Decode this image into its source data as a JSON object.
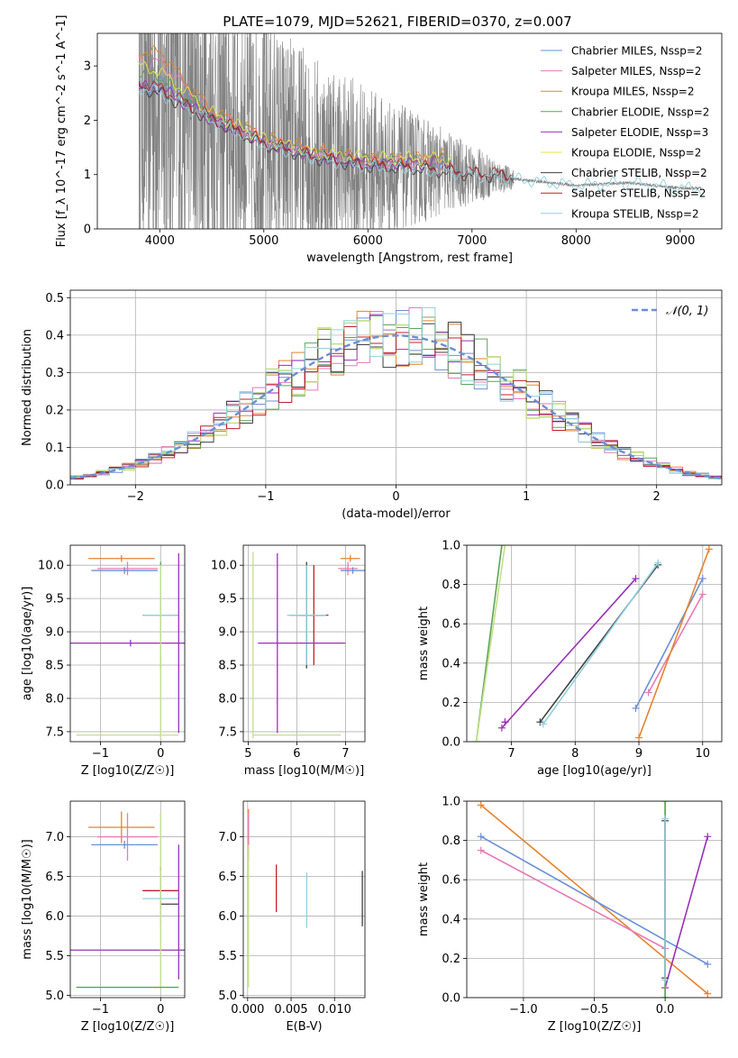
{
  "figure": {
    "title": "PLATE=1079, MJD=52621, FIBERID=0370, z=0.007"
  },
  "chart_data": [
    {
      "id": "spectrum",
      "type": "line",
      "title": "PLATE=1079, MJD=52621, FIBERID=0370, z=0.007",
      "xlabel": "wavelength [Angstrom, rest frame]",
      "ylabel": "Flux [f_λ 10^-17 erg cm^-2 s^-1 A^-1]",
      "xlim": [
        3400,
        9400
      ],
      "ylim": [
        0,
        3.6
      ],
      "xticks": [
        4000,
        5000,
        6000,
        7000,
        8000,
        9000
      ],
      "yticks": [
        0,
        1,
        2,
        3
      ],
      "grid": false,
      "legend_position": "top-right",
      "observed_color": "#808080",
      "observed_data_range": [
        3800,
        9200
      ],
      "series": [
        {
          "name": "Chabrier MILES, N_SSP=2",
          "color": "#6a8fd6",
          "x": [
            3800,
            3900,
            4000,
            4200,
            4500,
            5000,
            5500,
            6000,
            6500,
            6750
          ],
          "y": [
            2.7,
            2.6,
            2.7,
            2.5,
            2.05,
            1.6,
            1.35,
            1.2,
            1.2,
            1.25
          ]
        },
        {
          "name": "Salpeter MILES, N_SSP=2",
          "color": "#e87ab5",
          "x": [
            3800,
            3900,
            4000,
            4200,
            4500,
            5000,
            5500,
            6000,
            6500,
            6750
          ],
          "y": [
            3.2,
            3.0,
            3.1,
            2.7,
            2.15,
            1.65,
            1.4,
            1.25,
            1.25,
            1.3
          ]
        },
        {
          "name": "Kroupa MILES, N_SSP=2",
          "color": "#e5832e",
          "x": [
            3800,
            3900,
            4000,
            4200,
            4500,
            5000,
            5500,
            6000,
            6500,
            6750
          ],
          "y": [
            3.3,
            3.2,
            3.3,
            2.8,
            2.2,
            1.7,
            1.45,
            1.3,
            1.3,
            1.35
          ]
        },
        {
          "name": "Chabrier ELODIE, N_SSP=2",
          "color": "#5ba35b",
          "x": [
            3800,
            4000,
            4500,
            5000,
            5500,
            6000,
            6500,
            6800
          ],
          "y": [
            2.9,
            2.8,
            2.1,
            1.65,
            1.4,
            1.25,
            1.25,
            1.3
          ]
        },
        {
          "name": "Salpeter ELODIE, N_SSP=3",
          "color": "#9b30b8",
          "x": [
            3800,
            4000,
            4500,
            5000,
            5500,
            6000,
            6500,
            6800
          ],
          "y": [
            2.6,
            2.6,
            2.0,
            1.6,
            1.35,
            1.2,
            1.2,
            1.25
          ]
        },
        {
          "name": "Kroupa ELODIE, N_SSP=2",
          "color": "#e3e83a",
          "x": [
            3800,
            4000,
            4500,
            5000,
            5500,
            6000,
            6500,
            6800
          ],
          "y": [
            3.0,
            2.9,
            2.15,
            1.65,
            1.4,
            1.3,
            1.3,
            1.3
          ]
        },
        {
          "name": "Chabrier STELIB, N_SSP=2",
          "color": "#404040",
          "x": [
            3800,
            4000,
            4500,
            5000,
            5500,
            6000,
            6500,
            7000,
            7400
          ],
          "y": [
            2.6,
            2.5,
            2.0,
            1.55,
            1.3,
            1.15,
            1.1,
            1.0,
            0.95
          ]
        },
        {
          "name": "Salpeter STELIB, N_SSP=2",
          "color": "#c0202a",
          "x": [
            3800,
            4000,
            4500,
            5000,
            5500,
            6000,
            6500,
            7000,
            7400
          ],
          "y": [
            2.7,
            2.6,
            2.05,
            1.6,
            1.35,
            1.2,
            1.15,
            1.05,
            1.0
          ]
        },
        {
          "name": "Kroupa STELIB, N_SSP=2",
          "color": "#8fd0e0",
          "x": [
            3800,
            4000,
            4500,
            5000,
            5500,
            6000,
            6500,
            7000,
            7500,
            8000,
            8500,
            9000,
            9200
          ],
          "y": [
            2.6,
            2.5,
            2.0,
            1.55,
            1.3,
            1.15,
            1.1,
            1.0,
            0.9,
            0.8,
            0.85,
            0.75,
            0.75
          ]
        }
      ]
    },
    {
      "id": "residuals",
      "type": "line",
      "xlabel": "(data-model)/error",
      "ylabel": "Normed distribution",
      "xlim": [
        -2.5,
        2.5
      ],
      "ylim": [
        0,
        0.52
      ],
      "xticks": [
        -2,
        -1,
        0,
        1,
        2
      ],
      "yticks": [
        0.0,
        0.1,
        0.2,
        0.3,
        0.4,
        0.5
      ],
      "grid": true,
      "legend_position": "top-right",
      "normal_curve": {
        "name": "𝒩(0, 1)",
        "color": "#6a8fd6",
        "mean": 0,
        "sigma": 1
      },
      "histogram_bin_width": 0.1,
      "histogram_colors": [
        "#6a8fd6",
        "#e87ab5",
        "#e5832e",
        "#5ba35b",
        "#9b30b8",
        "#c3e088",
        "#404040",
        "#c0202a",
        "#8fd0e0"
      ]
    },
    {
      "id": "age-vs-Z",
      "type": "scatter",
      "xlabel": "Z [log10(Z/Z☉)]",
      "ylabel": "age  [log10(age/yr)]",
      "xlim": [
        -1.5,
        0.4
      ],
      "ylim": [
        7.35,
        10.3
      ],
      "xticks": [
        -1,
        0
      ],
      "yticks": [
        7.5,
        8.0,
        8.5,
        9.0,
        9.5,
        10.0
      ],
      "grid": true,
      "points": [
        {
          "color": "#e5832e",
          "x": -0.65,
          "y": 10.1,
          "xerr": 0.55,
          "yerr": 0.05
        },
        {
          "color": "#e87ab5",
          "x": -0.55,
          "y": 9.95,
          "xerr": 0.5,
          "yerr": 0.1
        },
        {
          "color": "#6a8fd6",
          "x": -0.6,
          "y": 9.92,
          "xerr": 0.55,
          "yerr": 0.05
        },
        {
          "color": "#5ba35b",
          "x": 0.0,
          "y": 9.25,
          "xerr": 0.3,
          "yerr": 0.8
        },
        {
          "color": "#8fd0e0",
          "x": 0.0,
          "y": 9.25,
          "xerr": 0.3,
          "yerr": 0.75
        },
        {
          "color": "#9b30b8",
          "x": -0.5,
          "y": 8.83,
          "xerr": 1.0,
          "yerr": 0.05
        },
        {
          "color": "#9b30b8",
          "x": 0.3,
          "y": 8.83,
          "xerr": 0.0,
          "yerr": 1.35
        },
        {
          "color": "#c3e088",
          "x": 0.0,
          "y": 8.7,
          "xerr": 0.0,
          "yerr": 1.3
        },
        {
          "color": "#c3e088",
          "x": -0.55,
          "y": 7.45,
          "xerr": 0.85,
          "yerr": 0.0
        }
      ]
    },
    {
      "id": "age-vs-mass",
      "type": "scatter",
      "xlabel": "mass [log10(M/M☉)]",
      "ylabel": "",
      "xlim": [
        4.9,
        7.4
      ],
      "ylim": [
        7.35,
        10.3
      ],
      "xticks": [
        5,
        6,
        7
      ],
      "yticks": [
        7.5,
        8.0,
        8.5,
        9.0,
        9.5,
        10.0
      ],
      "grid": true,
      "points": [
        {
          "color": "#e5832e",
          "x": 7.1,
          "y": 10.1,
          "xerr": 0.2,
          "yerr": 0.05
        },
        {
          "color": "#e87ab5",
          "x": 7.05,
          "y": 9.95,
          "xerr": 0.2,
          "yerr": 0.1
        },
        {
          "color": "#6a8fd6",
          "x": 7.15,
          "y": 9.92,
          "xerr": 0.25,
          "yerr": 0.05
        },
        {
          "color": "#404040",
          "x": 6.2,
          "y": 9.25,
          "xerr": 0.35,
          "yerr": 0.8
        },
        {
          "color": "#c0202a",
          "x": 6.35,
          "y": 9.25,
          "xerr": 0.3,
          "yerr": 0.75
        },
        {
          "color": "#8fd0e0",
          "x": 6.2,
          "y": 9.25,
          "xerr": 0.4,
          "yerr": 0.75
        },
        {
          "color": "#9b30b8",
          "x": 6.1,
          "y": 8.83,
          "xerr": 0.9,
          "yerr": 0.0
        },
        {
          "color": "#9b30b8",
          "x": 5.6,
          "y": 8.83,
          "xerr": 0.0,
          "yerr": 1.35
        },
        {
          "color": "#c3e088",
          "x": 5.1,
          "y": 8.8,
          "xerr": 0.0,
          "yerr": 1.4
        },
        {
          "color": "#c3e088",
          "x": 6.0,
          "y": 7.45,
          "xerr": 0.9,
          "yerr": 0.0
        }
      ]
    },
    {
      "id": "weight-vs-age",
      "type": "line",
      "xlabel": "age  [log10(age/yr)]",
      "ylabel": "mass weight",
      "xlim": [
        6.3,
        10.3
      ],
      "ylim": [
        0,
        1
      ],
      "xticks": [
        7,
        8,
        9,
        10
      ],
      "yticks": [
        0.0,
        0.2,
        0.4,
        0.6,
        0.8,
        1.0
      ],
      "grid": true,
      "series": [
        {
          "color": "#5ba35b",
          "x": [
            6.45,
            6.85
          ],
          "y": [
            0.0,
            1.0
          ]
        },
        {
          "color": "#c3e088",
          "x": [
            6.45,
            6.9
          ],
          "y": [
            0.0,
            1.0
          ]
        },
        {
          "color": "#9b30b8",
          "x": [
            6.85,
            8.95
          ],
          "y": [
            0.07,
            0.83
          ]
        },
        {
          "color": "#9b30b8",
          "x": [
            6.9,
            6.9
          ],
          "y": [
            0.1,
            0.1
          ]
        },
        {
          "color": "#404040",
          "x": [
            7.45,
            9.3
          ],
          "y": [
            0.1,
            0.9
          ]
        },
        {
          "color": "#8fd0e0",
          "x": [
            7.5,
            9.3
          ],
          "y": [
            0.09,
            0.91
          ]
        },
        {
          "color": "#6a8fd6",
          "x": [
            8.95,
            10.0
          ],
          "y": [
            0.17,
            0.83
          ]
        },
        {
          "color": "#e87ab5",
          "x": [
            9.15,
            10.0
          ],
          "y": [
            0.25,
            0.75
          ]
        },
        {
          "color": "#e5832e",
          "x": [
            9.0,
            10.1
          ],
          "y": [
            0.02,
            0.98
          ]
        }
      ]
    },
    {
      "id": "mass-vs-Z",
      "type": "scatter",
      "xlabel": "Z [log10(Z/Z☉)]",
      "ylabel": "mass [log10(M/M☉)]",
      "xlim": [
        -1.5,
        0.4
      ],
      "ylim": [
        4.97,
        7.45
      ],
      "xticks": [
        -1,
        0
      ],
      "yticks": [
        5.0,
        5.5,
        6.0,
        6.5,
        7.0
      ],
      "grid": true,
      "points": [
        {
          "color": "#e5832e",
          "x": -0.65,
          "y": 7.12,
          "xerr": 0.55,
          "yerr": 0.2
        },
        {
          "color": "#e87ab5",
          "x": -0.55,
          "y": 7.0,
          "xerr": 0.5,
          "yerr": 0.3
        },
        {
          "color": "#6a8fd6",
          "x": -0.6,
          "y": 6.9,
          "xerr": 0.55,
          "yerr": 0.05
        },
        {
          "color": "#c0202a",
          "x": 0.0,
          "y": 6.32,
          "xerr": 0.3,
          "yerr": 0.3
        },
        {
          "color": "#8fd0e0",
          "x": 0.0,
          "y": 6.22,
          "xerr": 0.3,
          "yerr": 0.35
        },
        {
          "color": "#404040",
          "x": 0.15,
          "y": 6.15,
          "xerr": 0.15,
          "yerr": 0.0
        },
        {
          "color": "#9b30b8",
          "x": -0.5,
          "y": 5.57,
          "xerr": 1.0,
          "yerr": 0.0
        },
        {
          "color": "#9b30b8",
          "x": 0.3,
          "y": 6.05,
          "xerr": 0.0,
          "yerr": 0.85
        },
        {
          "color": "#c3e088",
          "x": 0.0,
          "y": 6.2,
          "xerr": 0.0,
          "yerr": 1.1
        },
        {
          "color": "#5ba35b",
          "x": -0.55,
          "y": 5.1,
          "xerr": 0.85,
          "yerr": 0.0
        }
      ]
    },
    {
      "id": "mass-vs-ebv",
      "type": "scatter",
      "xlabel": "E(B-V)",
      "ylabel": "",
      "xlim": [
        -0.0005,
        0.0135
      ],
      "ylim": [
        4.97,
        7.45
      ],
      "xticks": [
        0.0,
        0.005,
        0.01
      ],
      "xticklabels": [
        "0.000",
        "0.005",
        "0.010"
      ],
      "yticks": [
        5.0,
        5.5,
        6.0,
        6.5,
        7.0
      ],
      "grid": true,
      "points": [
        {
          "color": "#e5832e",
          "x": 0.0001,
          "y": 7.1,
          "yerr": 0.25
        },
        {
          "color": "#e87ab5",
          "x": 0.0001,
          "y": 7.0,
          "yerr": 0.3
        },
        {
          "color": "#c3e088",
          "x": 0.0001,
          "y": 6.0,
          "yerr": 0.9
        },
        {
          "color": "#c0202a",
          "x": 0.0033,
          "y": 6.35,
          "yerr": 0.3
        },
        {
          "color": "#8fd0e0",
          "x": 0.0068,
          "y": 6.2,
          "yerr": 0.35
        },
        {
          "color": "#404040",
          "x": 0.0132,
          "y": 6.22,
          "yerr": 0.35
        }
      ]
    },
    {
      "id": "weight-vs-Z",
      "type": "line",
      "xlabel": "Z [log10(Z/Z☉)]",
      "ylabel": "mass weight",
      "xlim": [
        -1.4,
        0.4
      ],
      "ylim": [
        0,
        1
      ],
      "xticks": [
        -1.0,
        -0.5,
        0.0
      ],
      "xticklabels": [
        "−1.0",
        "−0.5",
        "0.0"
      ],
      "yticks": [
        0.0,
        0.2,
        0.4,
        0.6,
        0.8,
        1.0
      ],
      "grid": true,
      "series": [
        {
          "color": "#e5832e",
          "x": [
            -1.3,
            0.3
          ],
          "y": [
            0.98,
            0.02
          ]
        },
        {
          "color": "#6a8fd6",
          "x": [
            -1.3,
            0.3
          ],
          "y": [
            0.82,
            0.17
          ]
        },
        {
          "color": "#e87ab5",
          "x": [
            -1.3,
            0.0
          ],
          "y": [
            0.75,
            0.25
          ]
        },
        {
          "color": "#9b30b8",
          "x": [
            0.0,
            0.3
          ],
          "y": [
            0.05,
            0.82
          ]
        },
        {
          "color": "#c3e088",
          "x": [
            0.0,
            0.0
          ],
          "y": [
            0.0,
            1.0
          ]
        },
        {
          "color": "#5ba35b",
          "x": [
            0.0,
            0.0
          ],
          "y": [
            0.0,
            1.0
          ]
        },
        {
          "color": "#404040",
          "x": [
            0.0,
            0.0
          ],
          "y": [
            0.1,
            0.9
          ]
        },
        {
          "color": "#8fd0e0",
          "x": [
            0.0,
            0.0
          ],
          "y": [
            0.09,
            0.91
          ]
        }
      ]
    }
  ]
}
